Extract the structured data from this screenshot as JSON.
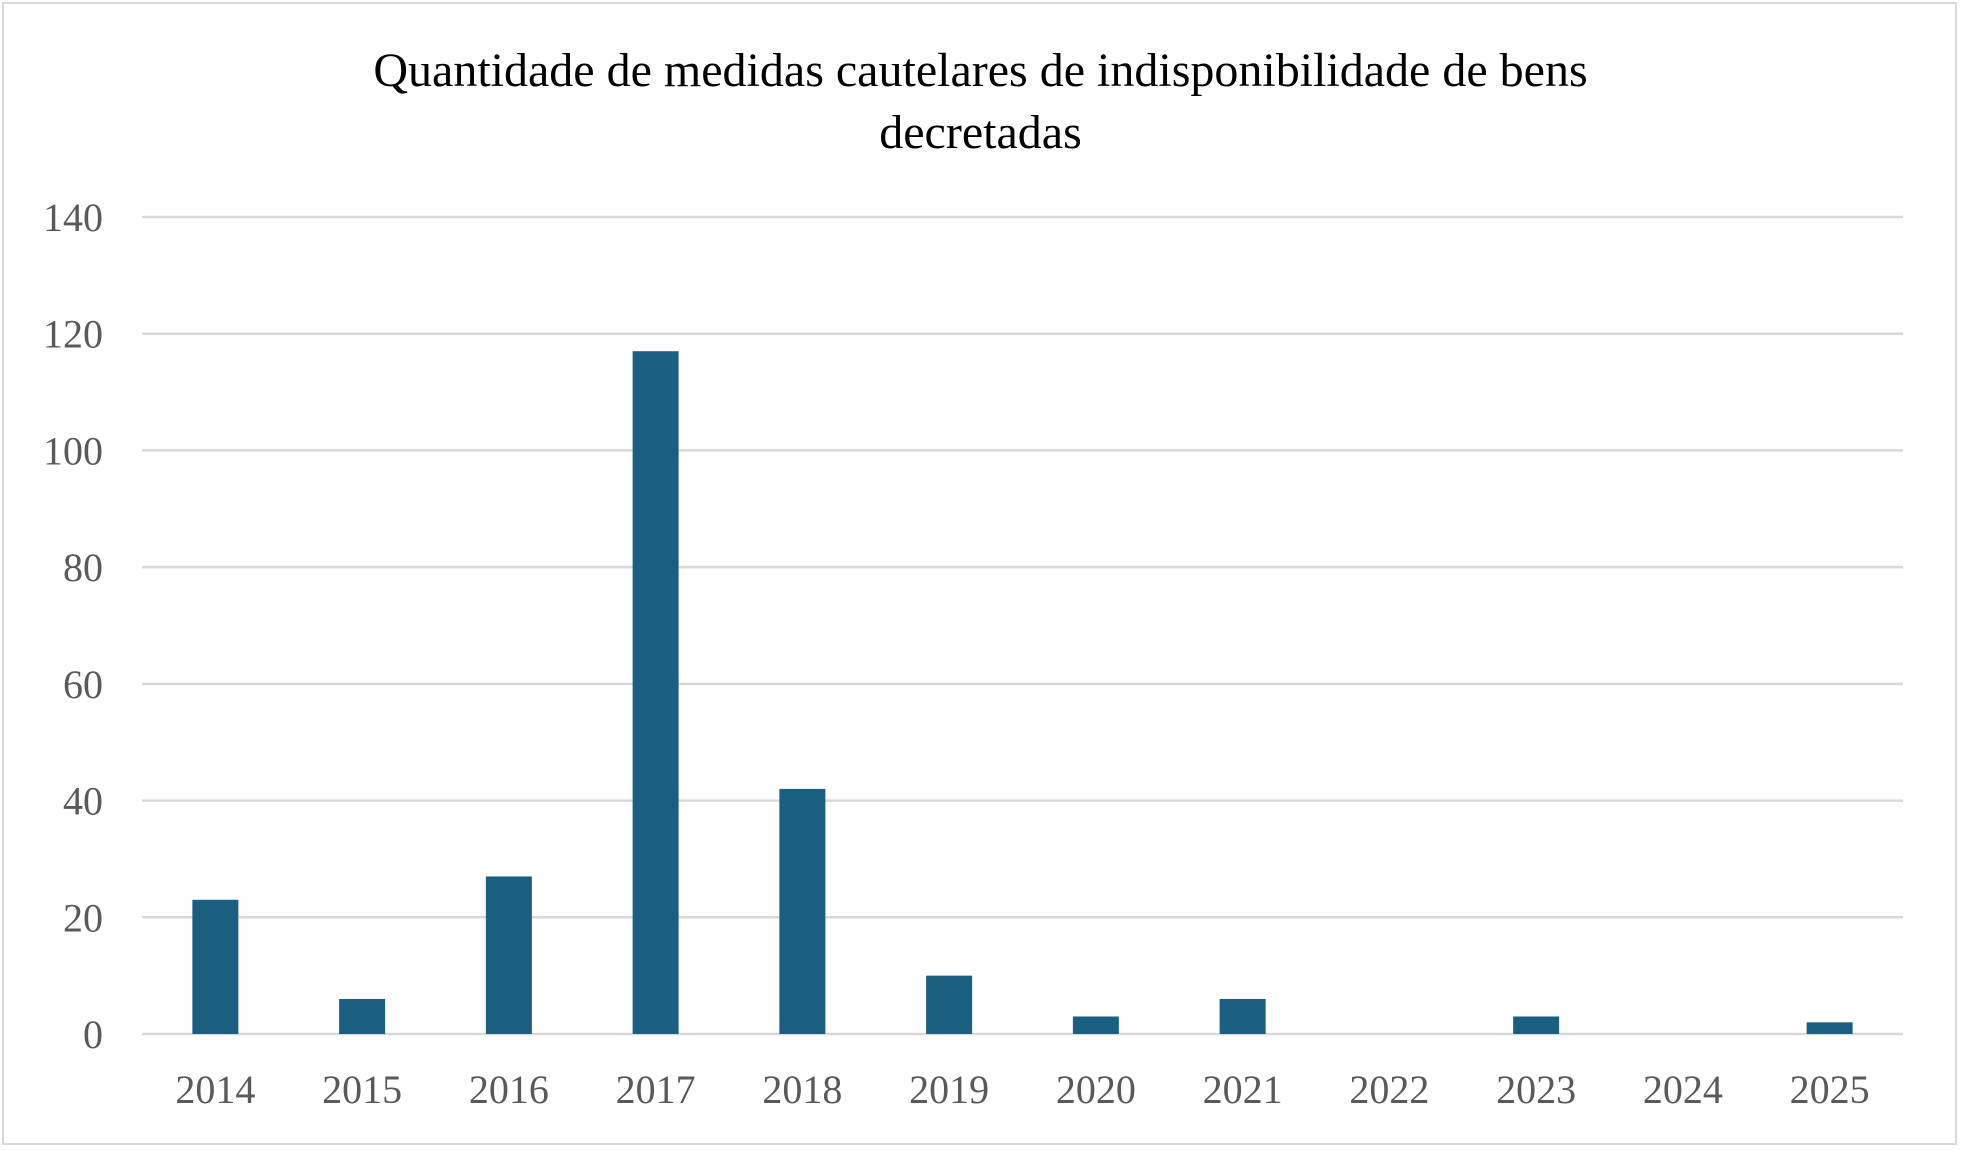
{
  "chart_data": {
    "type": "bar",
    "title_line1": "Quantidade de medidas cautelares de indisponibilidade de bens",
    "title_line2": "decretadas",
    "categories": [
      "2014",
      "2015",
      "2016",
      "2017",
      "2018",
      "2019",
      "2020",
      "2021",
      "2022",
      "2023",
      "2024",
      "2025"
    ],
    "values": [
      23,
      6,
      27,
      117,
      42,
      10,
      3,
      6,
      0,
      3,
      0,
      2
    ],
    "xlabel": "",
    "ylabel": "",
    "ylim": [
      0,
      140
    ],
    "yticks": [
      0,
      20,
      40,
      60,
      80,
      100,
      120,
      140
    ],
    "grid": true,
    "legend": "none",
    "bar_color": "#1a5e80",
    "grid_color": "#d9d9d9"
  }
}
